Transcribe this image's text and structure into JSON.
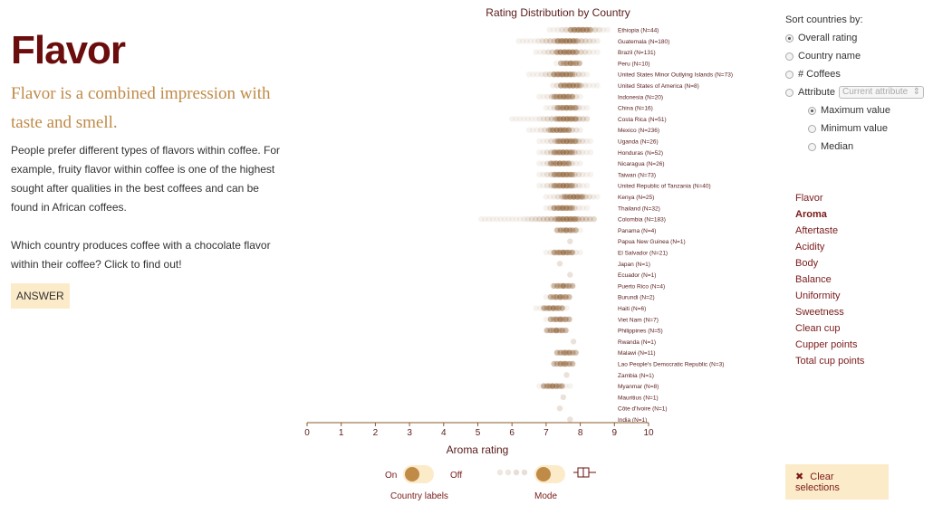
{
  "left": {
    "title": "Flavor",
    "subtitle": "Flavor is a combined impression with taste and smell.",
    "paragraph1": "People prefer different types of flavors within coffee. For example, fruity flavor within coffee is one of the highest sought after qualities in the best coffees and can be found in African coffees.",
    "paragraph2": "Which country produces coffee with a chocolate flavor within their coffee? Click to find out!",
    "answer_label": "ANSWER"
  },
  "sort": {
    "label": "Sort countries by:",
    "options": [
      "Overall rating",
      "Country name",
      "# Coffees",
      "Attribute"
    ],
    "selected": "Overall rating",
    "attribute_select_placeholder": "Current attribute",
    "sub_options": [
      "Maximum value",
      "Minimum value",
      "Median"
    ]
  },
  "attributes": {
    "items": [
      "Flavor",
      "Aroma",
      "Aftertaste",
      "Acidity",
      "Body",
      "Balance",
      "Uniformity",
      "Sweetness",
      "Clean cup",
      "Cupper points",
      "Total cup points"
    ],
    "active": "Aroma"
  },
  "clear_label": "Clear selections",
  "controls": {
    "on_label": "On",
    "off_label": "Off",
    "country_labels_caption": "Country labels",
    "mode_caption": "Mode"
  },
  "colors": {
    "title": "#6b0d0d",
    "subtitle": "#c08a47",
    "dot": "#8a5a2b",
    "button_bg": "#fcebc9"
  },
  "chart_data": {
    "type": "scatter",
    "title": "Rating Distribution by Country",
    "xlabel": "Aroma rating",
    "xlim": [
      0,
      10
    ],
    "xticks": [
      "0",
      "1",
      "2",
      "3",
      "4",
      "5",
      "6",
      "7",
      "8",
      "9",
      "10"
    ],
    "countries": [
      {
        "label": "Ethiopia (N=44)",
        "min": 7.1,
        "max": 8.8,
        "center": 8.0
      },
      {
        "label": "Guatemala (N=180)",
        "min": 6.2,
        "max": 8.5,
        "center": 7.6
      },
      {
        "label": "Brazil (N=131)",
        "min": 6.7,
        "max": 8.5,
        "center": 7.6
      },
      {
        "label": "Peru (N=10)",
        "min": 7.3,
        "max": 8.0,
        "center": 7.7
      },
      {
        "label": "United States Minor Outlying Islands (N=73)",
        "min": 6.5,
        "max": 8.2,
        "center": 7.5
      },
      {
        "label": "United States of America (N=8)",
        "min": 7.2,
        "max": 8.5,
        "center": 7.7
      },
      {
        "label": "Indonesia (N=20)",
        "min": 6.8,
        "max": 8.0,
        "center": 7.5
      },
      {
        "label": "China (N=16)",
        "min": 7.0,
        "max": 8.2,
        "center": 7.6
      },
      {
        "label": "Costa Rica (N=51)",
        "min": 6.0,
        "max": 8.2,
        "center": 7.6
      },
      {
        "label": "Mexico (N=236)",
        "min": 6.5,
        "max": 8.0,
        "center": 7.4
      },
      {
        "label": "Uganda (N=26)",
        "min": 6.8,
        "max": 8.3,
        "center": 7.6
      },
      {
        "label": "Honduras (N=52)",
        "min": 6.8,
        "max": 8.3,
        "center": 7.5
      },
      {
        "label": "Nicaragua (N=26)",
        "min": 6.8,
        "max": 8.0,
        "center": 7.4
      },
      {
        "label": "Taiwan (N=73)",
        "min": 6.8,
        "max": 8.3,
        "center": 7.5
      },
      {
        "label": "United Republic of Tanzania (N=40)",
        "min": 6.8,
        "max": 8.2,
        "center": 7.5
      },
      {
        "label": "Kenya (N=25)",
        "min": 7.0,
        "max": 8.5,
        "center": 7.8
      },
      {
        "label": "Thailand (N=32)",
        "min": 7.0,
        "max": 8.2,
        "center": 7.5
      },
      {
        "label": "Colombia (N=183)",
        "min": 5.1,
        "max": 8.4,
        "center": 7.6
      },
      {
        "label": "Panama (N=4)",
        "min": 7.3,
        "max": 8.0,
        "center": 7.6
      },
      {
        "label": "Papua New Guinea (N=1)",
        "min": 7.7,
        "max": 7.7,
        "center": 7.7
      },
      {
        "label": "El Salvador (N=21)",
        "min": 7.0,
        "max": 8.0,
        "center": 7.5
      },
      {
        "label": "Japan (N=1)",
        "min": 7.4,
        "max": 7.4,
        "center": 7.4
      },
      {
        "label": "Ecuador (N=1)",
        "min": 7.7,
        "max": 7.7,
        "center": 7.7
      },
      {
        "label": "Puerto Rico (N=4)",
        "min": 7.2,
        "max": 7.8,
        "center": 7.5
      },
      {
        "label": "Burundi (N=2)",
        "min": 7.0,
        "max": 7.7,
        "center": 7.4
      },
      {
        "label": "Haiti (N=6)",
        "min": 6.7,
        "max": 7.6,
        "center": 7.2
      },
      {
        "label": "Viet Nam (N=7)",
        "min": 7.0,
        "max": 7.7,
        "center": 7.4
      },
      {
        "label": "Philippines (N=5)",
        "min": 7.0,
        "max": 7.6,
        "center": 7.3
      },
      {
        "label": "Rwanda (N=1)",
        "min": 7.8,
        "max": 7.8,
        "center": 7.8
      },
      {
        "label": "Malawi (N=11)",
        "min": 7.3,
        "max": 7.8,
        "center": 7.6
      },
      {
        "label": "Lao People's Democratic Republic (N=3)",
        "min": 7.3,
        "max": 7.8,
        "center": 7.5
      },
      {
        "label": "Zambia (N=1)",
        "min": 7.6,
        "max": 7.6,
        "center": 7.6
      },
      {
        "label": "Myanmar (N=8)",
        "min": 6.8,
        "max": 7.7,
        "center": 7.2
      },
      {
        "label": "Mauritius (N=1)",
        "min": 7.5,
        "max": 7.5,
        "center": 7.5
      },
      {
        "label": "Côte d'Ivoire (N=1)",
        "min": 7.4,
        "max": 7.4,
        "center": 7.4
      },
      {
        "label": "India (N=1)",
        "min": 7.7,
        "max": 7.7,
        "center": 7.7
      }
    ]
  }
}
